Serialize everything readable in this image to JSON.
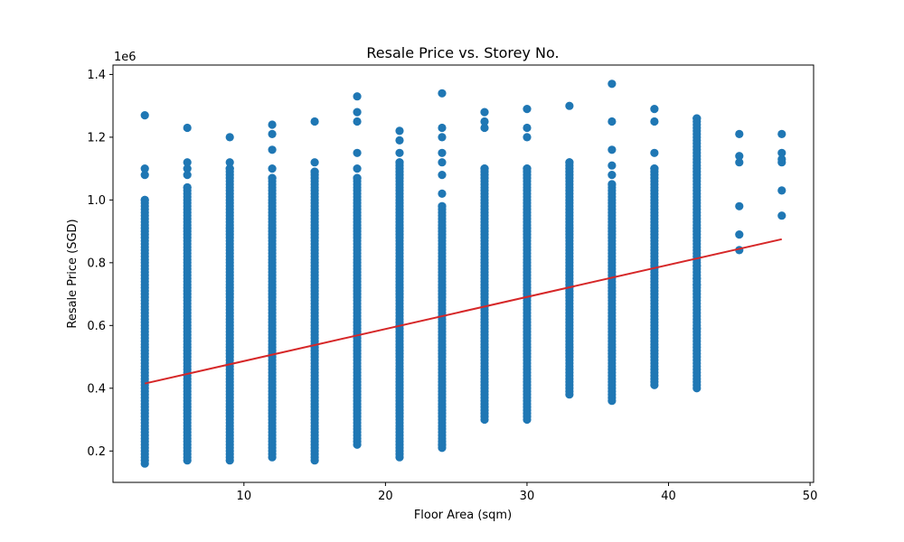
{
  "chart_data": {
    "type": "scatter",
    "title": "Resale Price vs. Storey No.",
    "xlabel": "Floor Area (sqm)",
    "ylabel": "Resale Price (SGD)",
    "y_offset_text": "1e6",
    "xlim": [
      0.75,
      50.25
    ],
    "ylim": [
      0.1,
      1.43
    ],
    "x_ticks": [
      10,
      20,
      30,
      40,
      50
    ],
    "y_ticks": [
      0.2,
      0.4,
      0.6,
      0.8,
      1.0,
      1.2,
      1.4
    ],
    "y_tick_labels": [
      "0.2",
      "0.4",
      "0.6",
      "0.8",
      "1.0",
      "1.2",
      "1.4"
    ],
    "grid": false,
    "point_color": "#1f77b4",
    "line_color": "#d62728",
    "series": [
      {
        "kind": "scatter",
        "columns": [
          {
            "x": 3,
            "min": 0.16,
            "max": 1.0,
            "outliers": [
              1.08,
              1.1,
              1.27
            ]
          },
          {
            "x": 6,
            "min": 0.17,
            "max": 1.04,
            "outliers": [
              1.08,
              1.1,
              1.12,
              1.23
            ]
          },
          {
            "x": 9,
            "min": 0.17,
            "max": 1.1,
            "outliers": [
              1.12,
              1.2
            ]
          },
          {
            "x": 12,
            "min": 0.18,
            "max": 1.07,
            "outliers": [
              1.1,
              1.16,
              1.21,
              1.24
            ]
          },
          {
            "x": 15,
            "min": 0.17,
            "max": 1.09,
            "outliers": [
              1.12,
              1.25
            ]
          },
          {
            "x": 18,
            "min": 0.22,
            "max": 1.07,
            "outliers": [
              1.1,
              1.15,
              1.25,
              1.28,
              1.33
            ]
          },
          {
            "x": 21,
            "min": 0.18,
            "max": 1.12,
            "outliers": [
              1.15,
              1.19,
              1.22
            ]
          },
          {
            "x": 24,
            "min": 0.21,
            "max": 0.98,
            "outliers": [
              1.02,
              1.08,
              1.12,
              1.15,
              1.2,
              1.23,
              1.34,
              0.22
            ]
          },
          {
            "x": 27,
            "min": 0.3,
            "max": 1.1,
            "outliers": [
              1.23,
              1.25,
              1.28
            ]
          },
          {
            "x": 30,
            "min": 0.3,
            "max": 1.1,
            "outliers": [
              1.2,
              1.23,
              1.29
            ]
          },
          {
            "x": 33,
            "min": 0.38,
            "max": 1.12,
            "outliers": [
              1.3
            ]
          },
          {
            "x": 36,
            "min": 0.36,
            "max": 1.05,
            "outliers": [
              1.08,
              1.11,
              1.16,
              1.25,
              1.37
            ]
          },
          {
            "x": 39,
            "min": 0.41,
            "max": 1.1,
            "outliers": [
              1.15,
              1.25,
              1.29
            ]
          },
          {
            "x": 42,
            "min": 0.4,
            "max": 1.26,
            "outliers": [
              0.59,
              0.73,
              0.75,
              0.79
            ]
          },
          {
            "x": 45,
            "min": 0.84,
            "max": 1.21,
            "points": [
              0.84,
              0.89,
              0.98,
              1.12,
              1.14,
              1.21
            ]
          },
          {
            "x": 48,
            "min": 0.95,
            "max": 1.21,
            "points": [
              0.95,
              1.03,
              1.12,
              1.13,
              1.15,
              1.21
            ]
          }
        ]
      },
      {
        "kind": "line",
        "x": [
          3,
          48
        ],
        "y": [
          0.415,
          0.875
        ]
      }
    ]
  }
}
